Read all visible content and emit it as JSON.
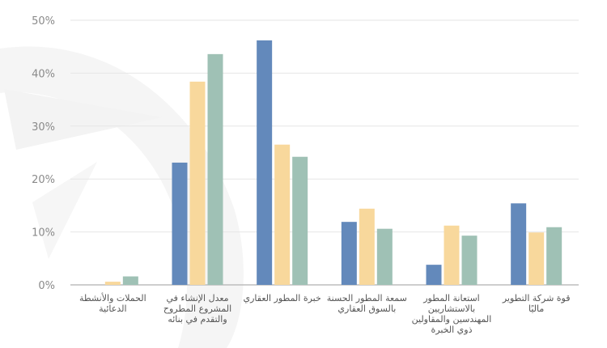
{
  "chart_data": {
    "type": "bar",
    "title": "",
    "xlabel": "",
    "ylabel": "",
    "ylim": [
      0,
      50
    ],
    "yticks": [
      "0%",
      "10%",
      "20%",
      "30%",
      "40%",
      "50%"
    ],
    "grid": true,
    "legend": "none",
    "categories": [
      "الحملات والأنشطة الدعائية",
      "معدل الإنشاء في المشروع المطروح والتقدم في بنائه",
      "خبرة المطور العقاري",
      "سمعة المطور الحسنة بالسوق العقاري",
      "استعانة المطور بالاستشاريين المهندسين والمقاولين ذوي الخبرة",
      "قوة شركة التطوير ماليًا"
    ],
    "series": [
      {
        "name": "series-1",
        "color": "#6389bb",
        "values": [
          0,
          23.1,
          46.2,
          11.9,
          3.8,
          15.4
        ]
      },
      {
        "name": "series-2",
        "color": "#f8d89c",
        "values": [
          0.6,
          38.4,
          26.5,
          14.4,
          11.2,
          9.9
        ]
      },
      {
        "name": "series-3",
        "color": "#9fc1b5",
        "values": [
          1.6,
          43.6,
          24.2,
          10.6,
          9.3,
          10.9
        ]
      }
    ]
  }
}
